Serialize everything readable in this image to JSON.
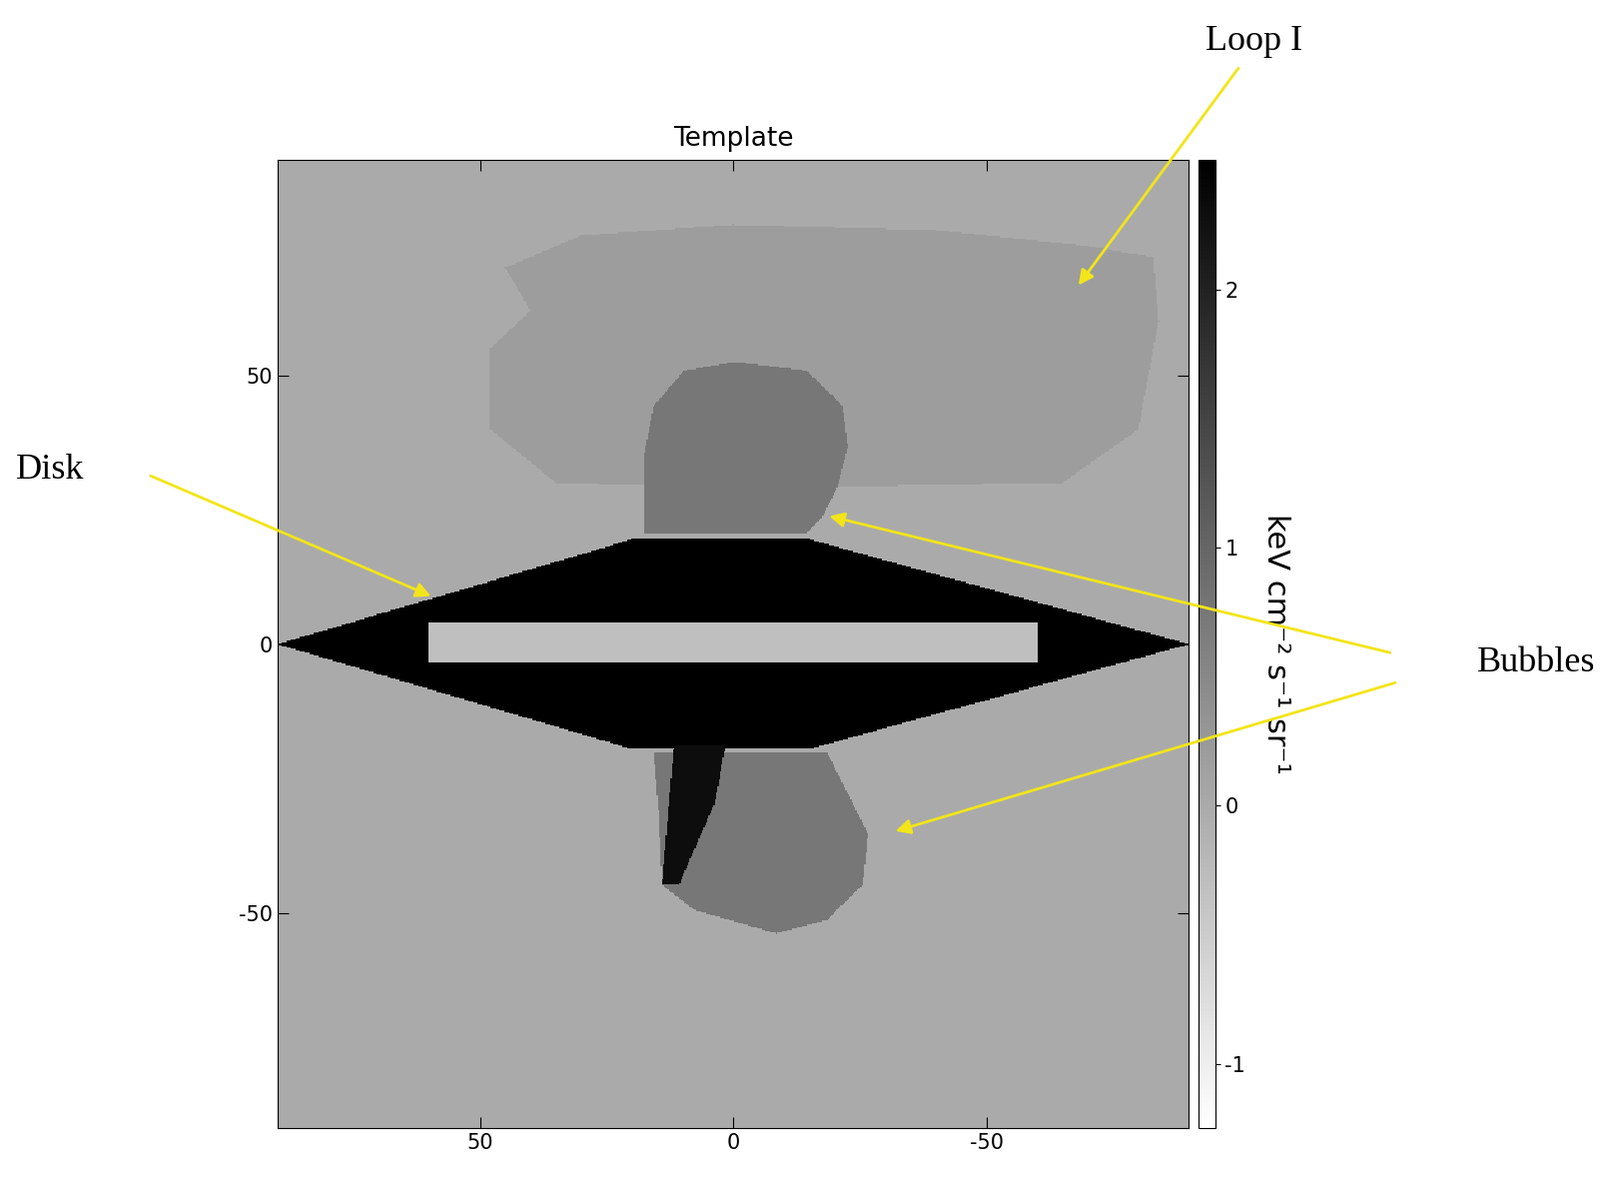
{
  "chart_data": {
    "type": "heatmap",
    "title": "Template",
    "xlim": [
      90,
      -90
    ],
    "ylim": [
      -90,
      90
    ],
    "xticks": [
      50,
      0,
      -50
    ],
    "yticks": [
      -50,
      0,
      50
    ],
    "background": 0.0,
    "regions": [
      {
        "value": 0.2,
        "polygon": [
          [
            40,
            62
          ],
          [
            45,
            70
          ],
          [
            30,
            76
          ],
          [
            0,
            78
          ],
          [
            -40,
            77
          ],
          [
            -70,
            74
          ],
          [
            -83,
            72
          ],
          [
            -84,
            60
          ],
          [
            -80,
            40
          ],
          [
            -65,
            30
          ],
          [
            0,
            29
          ],
          [
            35,
            30
          ],
          [
            48,
            40
          ],
          [
            48,
            55
          ]
        ]
      },
      {
        "value": 0.75,
        "polygon": [
          [
            17.7,
            20.6
          ],
          [
            17.7,
            34.8
          ],
          [
            15.7,
            44.3
          ],
          [
            9.7,
            50.9
          ],
          [
            -0.4,
            52.5
          ],
          [
            -14.5,
            50.9
          ],
          [
            -21.6,
            44.3
          ],
          [
            -22.6,
            36.7
          ],
          [
            -20.6,
            29.2
          ],
          [
            -17.5,
            23.5
          ],
          [
            -14.5,
            20.6
          ]
        ]
      },
      {
        "value": 0.75,
        "polygon": [
          [
            15.7,
            -20.1
          ],
          [
            14.7,
            -31.4
          ],
          [
            14.1,
            -44.7
          ],
          [
            7.7,
            -49.4
          ],
          [
            -8.5,
            -53.8
          ],
          [
            -18.5,
            -51.3
          ],
          [
            -25.6,
            -44.7
          ],
          [
            -26.6,
            -35.2
          ],
          [
            -22.6,
            -27.7
          ],
          [
            -18.5,
            -20.1
          ]
        ]
      },
      {
        "value": 2.5,
        "polygon": [
          [
            90,
            0
          ],
          [
            20,
            19.5
          ],
          [
            -15,
            19.5
          ],
          [
            -90,
            0
          ],
          [
            -15,
            -19.5
          ],
          [
            20,
            -19.5
          ]
        ]
      },
      {
        "value": 2.3,
        "polygon": [
          [
            11.7,
            -19
          ],
          [
            14.1,
            -44.7
          ],
          [
            10.7,
            -44.7
          ],
          [
            3.6,
            -29.5
          ],
          [
            1.6,
            -19
          ]
        ]
      },
      {
        "value": -0.3,
        "polygon": [
          [
            60,
            4
          ],
          [
            -60,
            4
          ],
          [
            -60,
            -3.5
          ],
          [
            60,
            -3.5
          ]
        ]
      }
    ],
    "colorbar": {
      "label": "keV cm⁻² s⁻¹ sr⁻¹",
      "range": [
        -1.25,
        2.5
      ],
      "ticks": [
        -1,
        0,
        1,
        2
      ]
    },
    "annotations": [
      "Loop I",
      "Disk",
      "Bubbles"
    ]
  }
}
